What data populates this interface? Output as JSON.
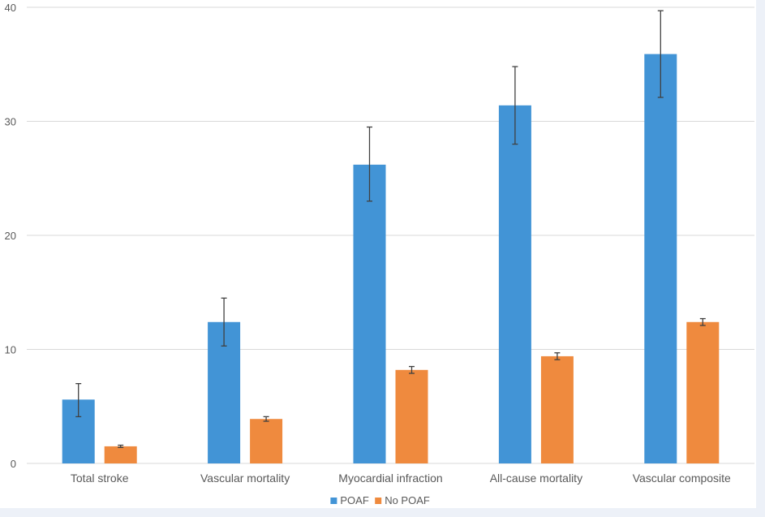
{
  "chart_data": {
    "type": "bar",
    "title": "",
    "xlabel": "",
    "ylabel": "",
    "ylim": [
      0,
      40
    ],
    "yticks": [
      0,
      10,
      20,
      30,
      40
    ],
    "grid": true,
    "legend_position": "bottom",
    "categories": [
      "Total stroke",
      "Vascular mortality",
      "Myocardial infraction",
      "All-cause mortality",
      "Vascular composite"
    ],
    "series": [
      {
        "name": "POAF",
        "color": "#4294d6",
        "values": [
          5.6,
          12.4,
          26.2,
          31.4,
          35.9
        ],
        "err_low": [
          4.1,
          10.3,
          23.0,
          28.0,
          32.1
        ],
        "err_high": [
          7.0,
          14.5,
          29.5,
          34.8,
          39.7
        ]
      },
      {
        "name": "No POAF",
        "color": "#ef8a3e",
        "values": [
          1.5,
          3.9,
          8.2,
          9.4,
          12.4
        ],
        "err_low": [
          1.4,
          3.7,
          7.9,
          9.1,
          12.1
        ],
        "err_high": [
          1.6,
          4.1,
          8.5,
          9.7,
          12.7
        ]
      }
    ]
  }
}
